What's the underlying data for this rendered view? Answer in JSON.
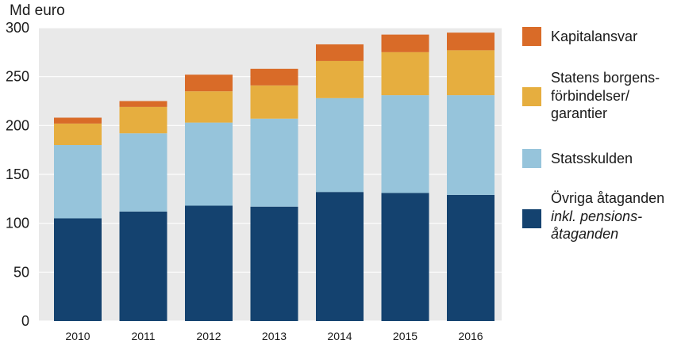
{
  "chart_data": {
    "type": "bar",
    "stacked": true,
    "y_unit": "Md euro",
    "categories": [
      "2010",
      "2011",
      "2012",
      "2013",
      "2014",
      "2015",
      "2016"
    ],
    "ylim": [
      0,
      300
    ],
    "y_ticks": [
      "0",
      "50",
      "100",
      "150",
      "200",
      "250",
      "300"
    ],
    "grid": true,
    "legend_position": "right",
    "series": [
      {
        "name": "Övriga åtaganden inkl. pensionsåtaganden",
        "color": "#14426f",
        "values": [
          105,
          112,
          118,
          117,
          132,
          131,
          129
        ]
      },
      {
        "name": "Statsskulden",
        "color": "#96c4db",
        "values": [
          75,
          80,
          85,
          90,
          96,
          100,
          102
        ]
      },
      {
        "name": "Statens borgensförbindelser/garantier",
        "color": "#e6ae3f",
        "values": [
          22,
          27,
          32,
          34,
          38,
          44,
          46
        ]
      },
      {
        "name": "Kapitalansvar",
        "color": "#d96b28",
        "values": [
          6,
          6,
          17,
          17,
          17,
          18,
          18
        ]
      }
    ]
  },
  "legend": [
    {
      "swatch": "#d96b28",
      "lines": [
        "Kapitalansvar"
      ]
    },
    {
      "swatch": "#e6ae3f",
      "lines": [
        "Statens borgens-",
        "förbindelser/",
        "garantier"
      ]
    },
    {
      "swatch": "#96c4db",
      "lines": [
        "Statsskulden"
      ]
    },
    {
      "swatch": "#14426f",
      "lines": [
        "Övriga åtaganden",
        "inkl. pensions-",
        "åtaganden"
      ]
    }
  ]
}
